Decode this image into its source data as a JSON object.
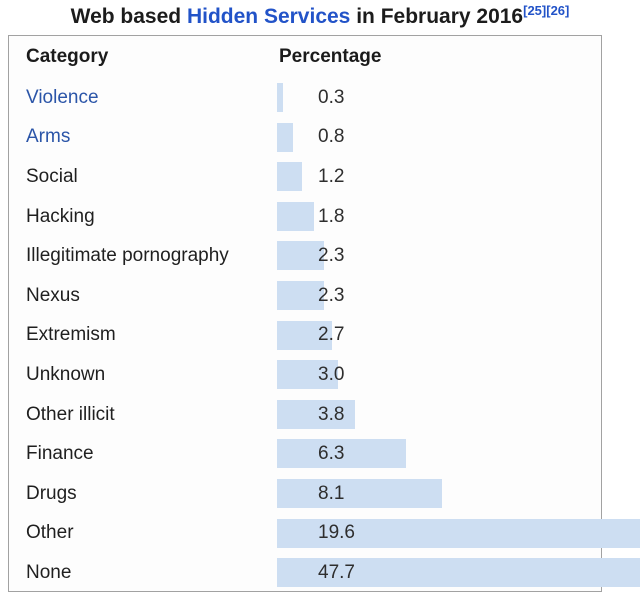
{
  "title": {
    "prefix": "Web based ",
    "link": "Hidden Services",
    "suffix": " in February 2016",
    "citations": [
      "[25]",
      "[26]"
    ]
  },
  "table": {
    "headers": {
      "category": "Category",
      "percentage": "Percentage"
    },
    "rows": [
      {
        "category": "Violence",
        "value": 0.3,
        "display": "0.3",
        "link": true
      },
      {
        "category": "Arms",
        "value": 0.8,
        "display": "0.8",
        "link": true
      },
      {
        "category": "Social",
        "value": 1.2,
        "display": "1.2",
        "link": false
      },
      {
        "category": "Hacking",
        "value": 1.8,
        "display": "1.8",
        "link": false
      },
      {
        "category": "Illegitimate pornography",
        "value": 2.3,
        "display": "2.3",
        "link": false
      },
      {
        "category": "Nexus",
        "value": 2.3,
        "display": "2.3",
        "link": false
      },
      {
        "category": "Extremism",
        "value": 2.7,
        "display": "2.7",
        "link": false
      },
      {
        "category": "Unknown",
        "value": 3.0,
        "display": "3.0",
        "link": false
      },
      {
        "category": "Other illicit",
        "value": 3.8,
        "display": "3.8",
        "link": false
      },
      {
        "category": "Finance",
        "value": 6.3,
        "display": "6.3",
        "link": false
      },
      {
        "category": "Drugs",
        "value": 8.1,
        "display": "8.1",
        "link": false
      },
      {
        "category": "Other",
        "value": 19.6,
        "display": "19.6",
        "link": false
      },
      {
        "category": "None",
        "value": 47.7,
        "display": "47.7",
        "link": false
      }
    ]
  },
  "colors": {
    "bar_fill": "#cddef2",
    "title_link_blue": "#2253c8",
    "citation_blue": "#2253c8",
    "body_link_blue": "#2b55a8",
    "text": "#1f1f1f",
    "border": "#a2a2a2"
  },
  "chart_data": {
    "type": "bar",
    "orientation": "horizontal",
    "title": "Web based Hidden Services in February 2016",
    "categories": [
      "Violence",
      "Arms",
      "Social",
      "Hacking",
      "Illegitimate pornography",
      "Nexus",
      "Extremism",
      "Unknown",
      "Other illicit",
      "Finance",
      "Drugs",
      "Other",
      "None"
    ],
    "values": [
      0.3,
      0.8,
      1.2,
      1.8,
      2.3,
      2.3,
      2.7,
      3.0,
      3.8,
      6.3,
      8.1,
      19.6,
      47.7
    ],
    "xlabel": "Percentage",
    "unit": "%",
    "legend": false,
    "grid": false,
    "bars_clipped_at_right_edge": [
      "Other",
      "None"
    ]
  }
}
